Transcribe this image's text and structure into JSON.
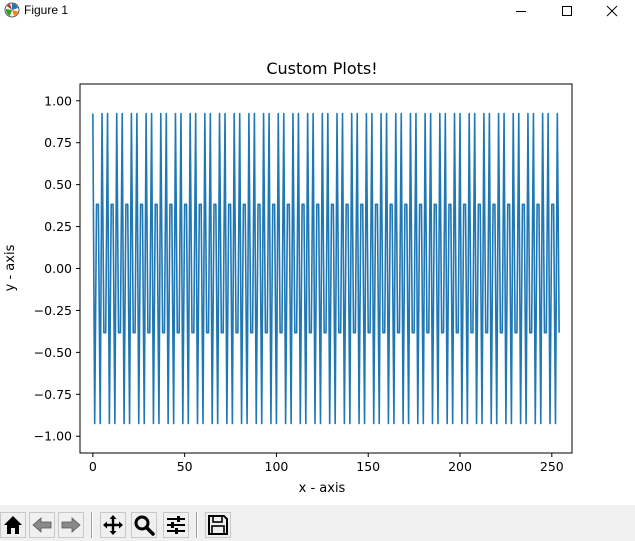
{
  "window": {
    "title": "Figure 1",
    "app_icon": "matplotlib-icon",
    "controls": [
      "minimize-icon",
      "maximize-icon",
      "close-icon"
    ]
  },
  "toolbar": {
    "buttons": [
      "home-icon",
      "back-icon",
      "forward-icon",
      "pan-icon",
      "zoom-icon",
      "configure-subplots-icon",
      "save-icon"
    ]
  },
  "chart_data": {
    "type": "line",
    "title": "Custom Plots!",
    "xlabel": "x - axis",
    "ylabel": "y - axis",
    "xlim": [
      -7,
      261
    ],
    "ylim": [
      -1.1,
      1.1
    ],
    "xticks": [
      "0",
      "50",
      "100",
      "150",
      "200",
      "250"
    ],
    "yticks": [
      "1.00",
      "0.75",
      "0.50",
      "0.25",
      "0.00",
      "−0.25",
      "−0.50",
      "−0.75",
      "−1.00"
    ],
    "grid": false,
    "line_color": "#1f77b4",
    "series": [
      {
        "x_start": 0,
        "x_end": 254,
        "step": 1,
        "function": "sin",
        "angular_step": 2.35619449,
        "phase": 1.96349541
      }
    ]
  }
}
